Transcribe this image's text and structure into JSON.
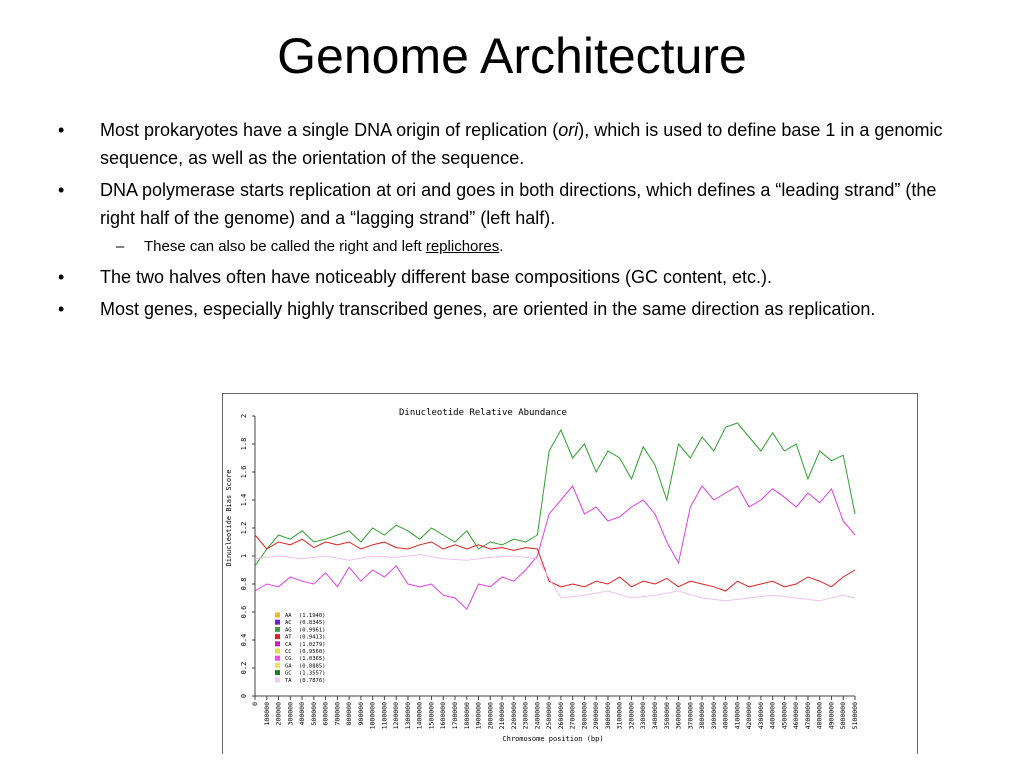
{
  "slide": {
    "title": "Genome Architecture",
    "bullets": [
      {
        "pre": "Most prokaryotes have a single DNA origin of replication (",
        "em": "ori",
        "post": "), which is used to define base 1 in a genomic sequence, as well as the orientation of the sequence."
      },
      {
        "text": "DNA polymerase starts replication at ori and goes in both directions, which defines a “leading strand” (the right half of the genome) and a “lagging strand” (left half)."
      },
      {
        "sub": true,
        "pre": "These can also be called the right and left ",
        "link": "replichores",
        "post": "."
      },
      {
        "text": "The two halves often have noticeably different base compositions (GC content, etc.)."
      },
      {
        "text": "Most genes, especially highly transcribed genes, are oriented in the same direction as replication."
      }
    ],
    "bullet_symbol": "•",
    "sub_symbol": "–"
  },
  "chart_data": {
    "type": "line",
    "title": "Dinucleotide Relative Abundance",
    "xlabel": "Chromosome position (bp)",
    "ylabel": "Dinucleotide Bias Score",
    "xlim": [
      0,
      5100000
    ],
    "ylim": [
      0,
      2
    ],
    "yticks": [
      0,
      0.2,
      0.4,
      0.6,
      0.8,
      1,
      1.2,
      1.4,
      1.6,
      1.8,
      2
    ],
    "xticks": [
      0,
      100000,
      200000,
      300000,
      400000,
      500000,
      600000,
      700000,
      800000,
      900000,
      1000000,
      1100000,
      1200000,
      1300000,
      1400000,
      1500000,
      1600000,
      1700000,
      1800000,
      1900000,
      2000000,
      2100000,
      2200000,
      2300000,
      2400000,
      2500000,
      2600000,
      2700000,
      2800000,
      2900000,
      3000000,
      3100000,
      3200000,
      3300000,
      3400000,
      3500000,
      3600000,
      3700000,
      3800000,
      3900000,
      4000000,
      4100000,
      4200000,
      4300000,
      4400000,
      4500000,
      4600000,
      4700000,
      4800000,
      4900000,
      5000000,
      5100000
    ],
    "legend": [
      {
        "name": "AA",
        "value": "(1.1940)",
        "color": "#e8c020"
      },
      {
        "name": "AC",
        "value": "(0.8345)",
        "color": "#7020d0"
      },
      {
        "name": "AG",
        "value": "(0.9961)",
        "color": "#40a040"
      },
      {
        "name": "AT",
        "value": "(0.9413)",
        "color": "#e02020"
      },
      {
        "name": "CA",
        "value": "(1.0279)",
        "color": "#c020c0"
      },
      {
        "name": "CC",
        "value": "(0.9560)",
        "color": "#e0e040"
      },
      {
        "name": "CG",
        "value": "(1.0365)",
        "color": "#ff40ff"
      },
      {
        "name": "GA",
        "value": "(0.8885)",
        "color": "#f0e060"
      },
      {
        "name": "GC",
        "value": "(1.3557)",
        "color": "#208020"
      },
      {
        "name": "TA",
        "value": "(0.7876)",
        "color": "#f0c8f0"
      }
    ],
    "series": [
      {
        "color": "#30a030",
        "x": [
          0,
          100000,
          200000,
          300000,
          400000,
          500000,
          600000,
          700000,
          800000,
          900000,
          1000000,
          1100000,
          1200000,
          1300000,
          1400000,
          1500000,
          1600000,
          1700000,
          1800000,
          1900000,
          2000000,
          2100000,
          2200000,
          2300000,
          2400000,
          2500000,
          2600000,
          2700000,
          2800000,
          2900000,
          3000000,
          3100000,
          3200000,
          3300000,
          3400000,
          3500000,
          3600000,
          3700000,
          3800000,
          3900000,
          4000000,
          4100000,
          4200000,
          4300000,
          4400000,
          4500000,
          4600000,
          4700000,
          4800000,
          4900000,
          5000000,
          5100000
        ],
        "y": [
          0.93,
          1.05,
          1.15,
          1.12,
          1.18,
          1.1,
          1.12,
          1.15,
          1.18,
          1.1,
          1.2,
          1.15,
          1.22,
          1.18,
          1.12,
          1.2,
          1.15,
          1.1,
          1.18,
          1.05,
          1.1,
          1.08,
          1.12,
          1.1,
          1.15,
          1.75,
          1.9,
          1.7,
          1.8,
          1.6,
          1.75,
          1.7,
          1.55,
          1.78,
          1.65,
          1.4,
          1.8,
          1.7,
          1.85,
          1.75,
          1.92,
          1.95,
          1.85,
          1.75,
          1.88,
          1.75,
          1.8,
          1.55,
          1.75,
          1.68,
          1.72,
          1.3
        ]
      },
      {
        "color": "#e040e0",
        "x": [
          0,
          100000,
          200000,
          300000,
          400000,
          500000,
          600000,
          700000,
          800000,
          900000,
          1000000,
          1100000,
          1200000,
          1300000,
          1400000,
          1500000,
          1600000,
          1700000,
          1800000,
          1900000,
          2000000,
          2100000,
          2200000,
          2300000,
          2400000,
          2500000,
          2600000,
          2700000,
          2800000,
          2900000,
          3000000,
          3100000,
          3200000,
          3300000,
          3400000,
          3500000,
          3600000,
          3700000,
          3800000,
          3900000,
          4000000,
          4100000,
          4200000,
          4300000,
          4400000,
          4500000,
          4600000,
          4700000,
          4800000,
          4900000,
          5000000,
          5100000
        ],
        "y": [
          0.75,
          0.8,
          0.78,
          0.85,
          0.82,
          0.8,
          0.88,
          0.78,
          0.92,
          0.82,
          0.9,
          0.85,
          0.93,
          0.8,
          0.78,
          0.8,
          0.72,
          0.7,
          0.62,
          0.8,
          0.78,
          0.85,
          0.82,
          0.9,
          1.0,
          1.3,
          1.4,
          1.5,
          1.3,
          1.35,
          1.25,
          1.28,
          1.35,
          1.4,
          1.3,
          1.1,
          0.95,
          1.35,
          1.5,
          1.4,
          1.45,
          1.5,
          1.35,
          1.4,
          1.48,
          1.42,
          1.35,
          1.45,
          1.38,
          1.48,
          1.25,
          1.15
        ]
      },
      {
        "color": "#e02020",
        "x": [
          0,
          100000,
          200000,
          300000,
          400000,
          500000,
          600000,
          700000,
          800000,
          900000,
          1000000,
          1100000,
          1200000,
          1300000,
          1400000,
          1500000,
          1600000,
          1700000,
          1800000,
          1900000,
          2000000,
          2100000,
          2200000,
          2300000,
          2400000,
          2500000,
          2600000,
          2700000,
          2800000,
          2900000,
          3000000,
          3100000,
          3200000,
          3300000,
          3400000,
          3500000,
          3600000,
          3700000,
          3800000,
          3900000,
          4000000,
          4100000,
          4200000,
          4300000,
          4400000,
          4500000,
          4600000,
          4700000,
          4800000,
          4900000,
          5000000,
          5100000
        ],
        "y": [
          1.15,
          1.05,
          1.1,
          1.08,
          1.12,
          1.06,
          1.1,
          1.08,
          1.1,
          1.05,
          1.08,
          1.1,
          1.06,
          1.05,
          1.08,
          1.1,
          1.05,
          1.08,
          1.05,
          1.08,
          1.05,
          1.06,
          1.04,
          1.06,
          1.05,
          0.82,
          0.78,
          0.8,
          0.78,
          0.82,
          0.8,
          0.85,
          0.78,
          0.82,
          0.8,
          0.84,
          0.78,
          0.82,
          0.8,
          0.78,
          0.75,
          0.82,
          0.78,
          0.8,
          0.82,
          0.78,
          0.8,
          0.85,
          0.82,
          0.78,
          0.85,
          0.9
        ]
      },
      {
        "color": "#f0c0f0",
        "x": [
          0,
          200000,
          400000,
          600000,
          800000,
          1000000,
          1200000,
          1400000,
          1600000,
          1800000,
          2000000,
          2200000,
          2400000,
          2600000,
          2800000,
          3000000,
          3200000,
          3400000,
          3600000,
          3800000,
          4000000,
          4200000,
          4400000,
          4600000,
          4800000,
          5000000,
          5100000
        ],
        "y": [
          0.98,
          1.0,
          0.98,
          1.0,
          0.97,
          1.0,
          0.99,
          1.01,
          0.98,
          0.97,
          0.99,
          1.0,
          0.98,
          0.7,
          0.72,
          0.75,
          0.7,
          0.72,
          0.75,
          0.7,
          0.68,
          0.7,
          0.72,
          0.7,
          0.68,
          0.72,
          0.7
        ]
      }
    ]
  }
}
